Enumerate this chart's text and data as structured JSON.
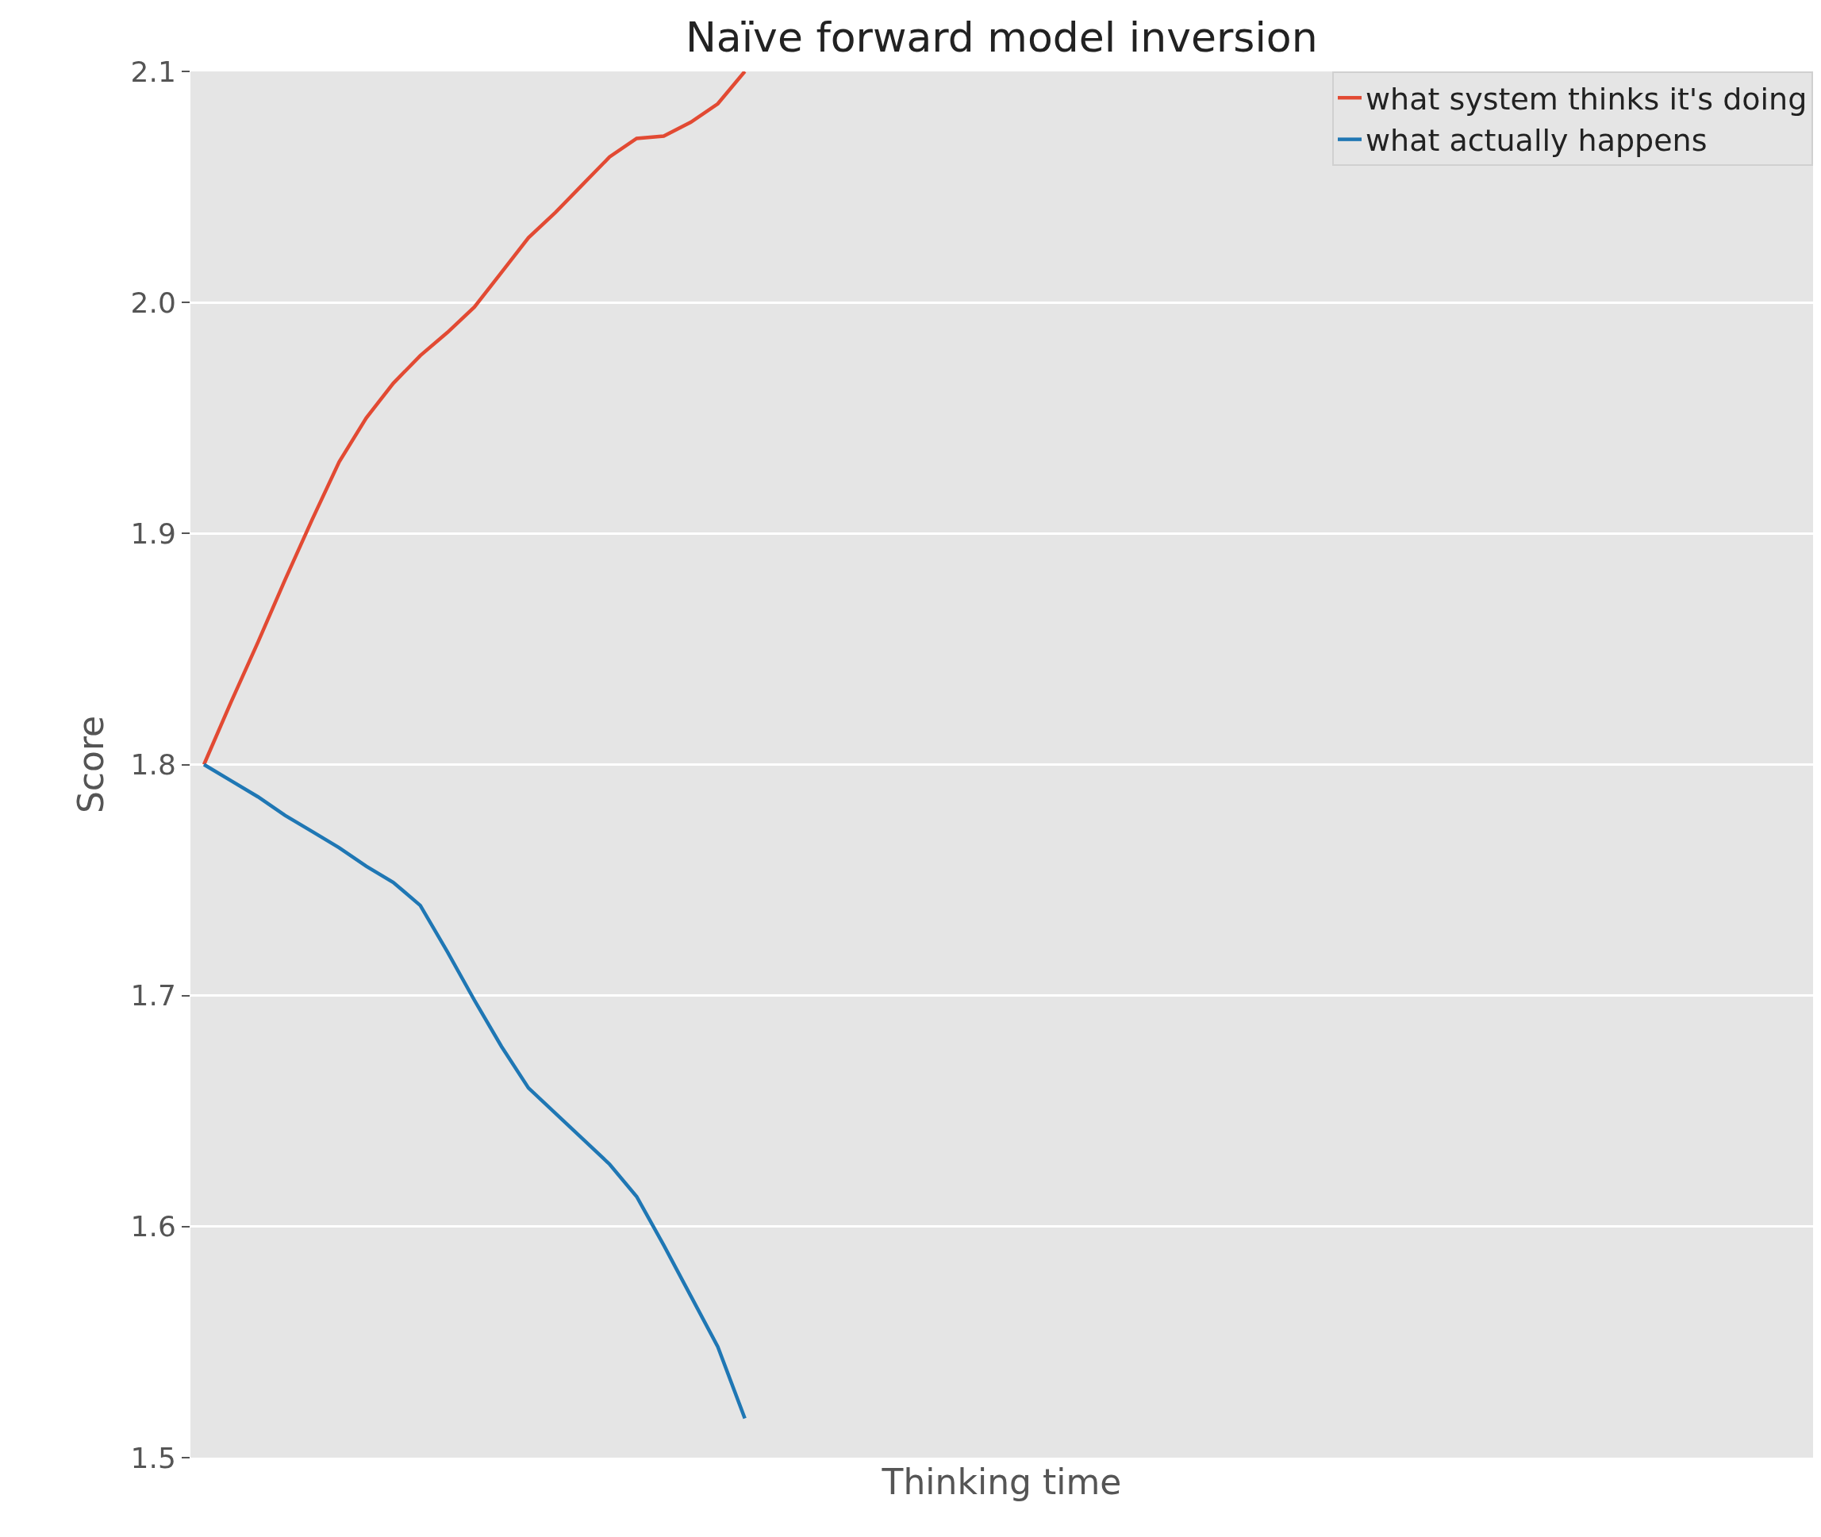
{
  "chart_data": {
    "type": "line",
    "title": "Naïve forward model inversion",
    "xlabel": "Thinking time",
    "ylabel": "Score",
    "categories": [
      null,
      null,
      null,
      null,
      null,
      null,
      null,
      null,
      null,
      null,
      null,
      null,
      null,
      null,
      null,
      null,
      null,
      null,
      null,
      null,
      null,
      null,
      null,
      null,
      null,
      null,
      null,
      null,
      null,
      null,
      null,
      null,
      null,
      null,
      null,
      null,
      null,
      null,
      null,
      null,
      null,
      null,
      null,
      null,
      null,
      null,
      null,
      null,
      null,
      null,
      null,
      null,
      null,
      null,
      null,
      null,
      null,
      null,
      null,
      null
    ],
    "series": [
      {
        "name": "what system thinks it's doing",
        "color": "#e24a33",
        "values": [
          1.8,
          1.827,
          1.853,
          1.88,
          1.906,
          1.931,
          1.95,
          1.965,
          1.977,
          1.987,
          1.998,
          2.013,
          2.028,
          2.039,
          2.051,
          2.063,
          2.071,
          2.072,
          2.078,
          2.086,
          2.1,
          null,
          null,
          null,
          null,
          null,
          null,
          null,
          null,
          null,
          null,
          null,
          null,
          null,
          null,
          null,
          null,
          null,
          null,
          null,
          null,
          null,
          null,
          null,
          null,
          null,
          null,
          null,
          null,
          null,
          null,
          null,
          null,
          null,
          null,
          null,
          null,
          null,
          null,
          null
        ]
      },
      {
        "name": "what actually happens",
        "color": "#1f77b4",
        "values": [
          1.8,
          1.793,
          1.786,
          1.778,
          1.771,
          1.764,
          1.756,
          1.749,
          1.739,
          1.719,
          1.698,
          1.678,
          1.66,
          1.649,
          1.638,
          1.627,
          1.613,
          1.592,
          1.57,
          1.548,
          1.517,
          null,
          null,
          null,
          null,
          null,
          null,
          null,
          null,
          null,
          null,
          null,
          null,
          null,
          null,
          null,
          null,
          null,
          null,
          null,
          null,
          null,
          null,
          null,
          null,
          null,
          null,
          null,
          null,
          null,
          null,
          null,
          null,
          null,
          null,
          null,
          null,
          null,
          null,
          null
        ]
      }
    ],
    "ylim": [
      1.5,
      2.1
    ],
    "yticks": [
      {
        "value": 1.5,
        "label": "1.5"
      },
      1.6,
      1.7,
      1.8,
      1.9,
      {
        "value": 2.0,
        "label": "2.0"
      },
      2.1
    ],
    "grid": "y",
    "legend": "top right",
    "tick_labels": "y",
    "line_style": "solid",
    "marker": "none"
  }
}
